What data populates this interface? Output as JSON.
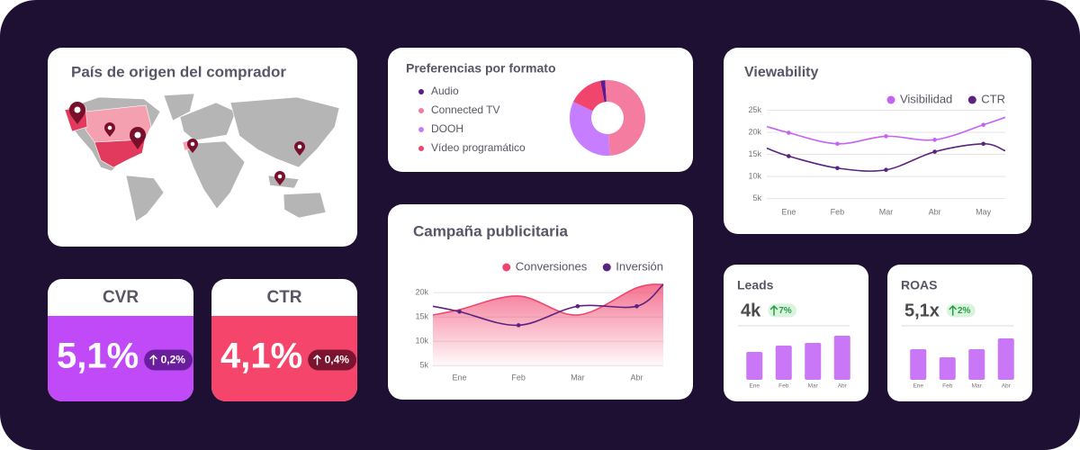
{
  "map_card": {
    "title": "País de origen del comprador"
  },
  "kpis": [
    {
      "label": "CVR",
      "value": "5,1%",
      "change": "0,2%",
      "color": "#c04af7",
      "badge_color": "#6a1d9c"
    },
    {
      "label": "CTR",
      "value": "4,1%",
      "change": "0,4%",
      "color": "#f5456b",
      "badge_color": "#7a1430"
    }
  ],
  "chart_data": [
    {
      "type": "pie",
      "donut": true,
      "title": "Preferencias por formato",
      "categories": [
        "Audio",
        "Connected TV",
        "DOOH",
        "Vídeo programático"
      ],
      "values": [
        2,
        50,
        33,
        15
      ],
      "colors": [
        "#5b1a8f",
        "#f47ca0",
        "#c77dff",
        "#f2456e"
      ]
    },
    {
      "type": "line",
      "title": "Viewability",
      "categories": [
        null,
        "Ene",
        "Feb",
        "Mar",
        "Abr",
        "May",
        null
      ],
      "series": [
        {
          "name": "Visibilidad",
          "color": "#c561f5",
          "values": [
            21300,
            19900,
            17400,
            19100,
            18300,
            21700,
            23400
          ]
        },
        {
          "name": "CTR",
          "color": "#5b2380",
          "values": [
            16400,
            14600,
            11900,
            11500,
            15600,
            17400,
            15800
          ]
        }
      ],
      "ylim": [
        3500,
        25500
      ],
      "yticks": [
        {
          "value": 25000,
          "label": "25k"
        },
        {
          "value": 20000,
          "label": "20k"
        },
        {
          "value": 15000,
          "label": "15k"
        },
        {
          "value": 10000,
          "label": "10k"
        },
        {
          "value": 5000,
          "label": "5k"
        }
      ],
      "grid": true,
      "legend": "top-right"
    },
    {
      "type": "line",
      "title": "Campaña publicitaria",
      "categories": [
        null,
        "Ene",
        "Feb",
        "Mar",
        "Abr",
        null
      ],
      "series": [
        {
          "name": "Conversiones",
          "color": "#f2456e",
          "area": true,
          "values": [
            15400,
            16500,
            19300,
            15400,
            21000,
            21700
          ]
        },
        {
          "name": "Inversión",
          "color": "#5b2380",
          "values": [
            17200,
            16100,
            13300,
            17200,
            17200,
            21700
          ]
        }
      ],
      "ylim": [
        4300,
        21700
      ],
      "yticks": [
        {
          "value": 20000,
          "label": "20k"
        },
        {
          "value": 15000,
          "label": "15k"
        },
        {
          "value": 10000,
          "label": "10k"
        },
        {
          "value": 5000,
          "label": "5k"
        }
      ],
      "grid": true,
      "legend": "top-right"
    },
    {
      "type": "bar",
      "title": "Leads",
      "headline": "4k",
      "change": "7%",
      "categories": [
        "Ene",
        "Feb",
        "Mar",
        "Abr"
      ],
      "values": [
        31,
        38,
        41,
        49
      ],
      "color": "#c977f7",
      "ylim": [
        0,
        50
      ]
    },
    {
      "type": "bar",
      "title": "ROAS",
      "headline": "5,1x",
      "change": "2%",
      "categories": [
        "Ene",
        "Feb",
        "Mar",
        "Abr"
      ],
      "values": [
        34,
        25,
        34,
        46
      ],
      "color": "#c977f7",
      "ylim": [
        0,
        50
      ]
    }
  ]
}
